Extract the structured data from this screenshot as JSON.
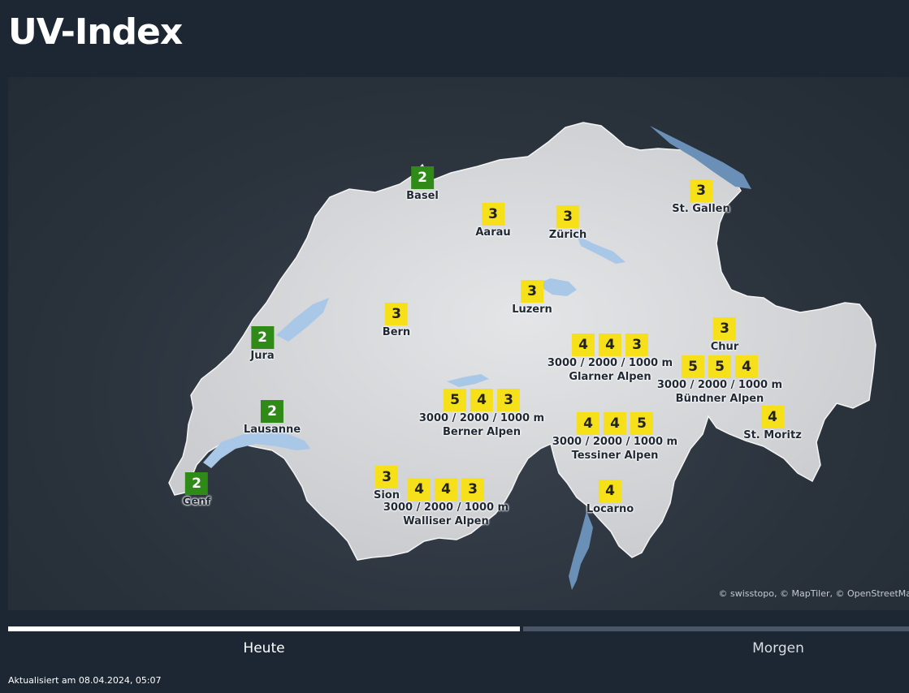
{
  "title": "UV-Index",
  "attribution": "© swisstopo, © MapTiler, © OpenStreetMap",
  "colors": {
    "low": "#2f8a17",
    "moderate": "#f5e01a",
    "background": "#1d2734"
  },
  "markers": [
    {
      "name": "Basel",
      "values": [
        2
      ]
    },
    {
      "name": "Aarau",
      "values": [
        3
      ]
    },
    {
      "name": "Zürich",
      "values": [
        3
      ]
    },
    {
      "name": "St. Gallen",
      "values": [
        3
      ]
    },
    {
      "name": "Luzern",
      "values": [
        3
      ]
    },
    {
      "name": "Bern",
      "values": [
        3
      ]
    },
    {
      "name": "Jura",
      "values": [
        2
      ]
    },
    {
      "name": "Chur",
      "values": [
        3
      ]
    },
    {
      "name": "Glarner Alpen",
      "values": [
        4,
        4,
        3
      ],
      "elevations": "3000 / 2000 / 1000 m"
    },
    {
      "name": "Bündner Alpen",
      "values": [
        5,
        5,
        4
      ],
      "elevations": "3000 / 2000 / 1000 m"
    },
    {
      "name": "Lausanne",
      "values": [
        2
      ]
    },
    {
      "name": "Berner Alpen",
      "values": [
        5,
        4,
        3
      ],
      "elevations": "3000 / 2000 / 1000 m"
    },
    {
      "name": "Tessiner Alpen",
      "values": [
        4,
        4,
        5
      ],
      "elevations": "3000 / 2000 / 1000 m"
    },
    {
      "name": "St. Moritz",
      "values": [
        4
      ]
    },
    {
      "name": "Genf",
      "values": [
        2
      ]
    },
    {
      "name": "Sion",
      "values": [
        3
      ]
    },
    {
      "name": "Walliser Alpen",
      "values": [
        4,
        4,
        3
      ],
      "elevations": "3000 / 2000 / 1000 m"
    },
    {
      "name": "Locarno",
      "values": [
        4
      ]
    }
  ],
  "tabs": [
    {
      "label": "Heute",
      "active": true
    },
    {
      "label": "Morgen",
      "active": false
    }
  ],
  "updated": "Aktualisiert am 08.04.2024, 05:07"
}
